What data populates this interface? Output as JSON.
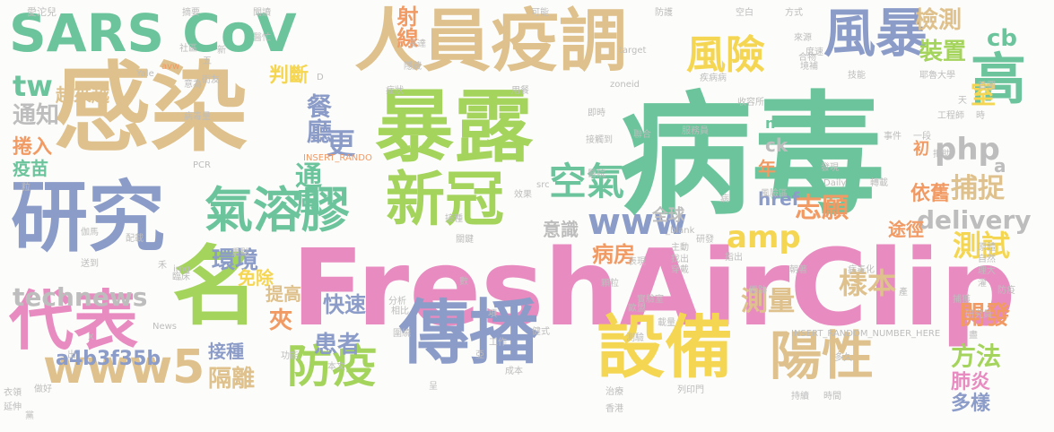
{
  "palette": {
    "green": "#6cc49c",
    "tan": "#dec18c",
    "blue": "#8c9cc8",
    "lime": "#a4d45c",
    "yellow": "#f5d653",
    "orange": "#f29a63",
    "pink": "#e88bc0",
    "gray": "#bdbdbd"
  },
  "words": [
    {
      "text": "病毒",
      "color": "green"
    },
    {
      "text": "FreshAirClip",
      "color": "pink"
    },
    {
      "text": "感染",
      "color": "tan"
    },
    {
      "text": "暴露",
      "color": "lime"
    },
    {
      "text": "人員疫調",
      "color": "tan"
    },
    {
      "text": "研究",
      "color": "blue"
    },
    {
      "text": "傳播",
      "color": "blue"
    },
    {
      "text": "設備",
      "color": "yellow"
    },
    {
      "text": "名",
      "color": "lime"
    },
    {
      "text": "代表",
      "color": "pink"
    },
    {
      "text": "新冠",
      "color": "lime"
    },
    {
      "text": "SARS CoV",
      "color": "green"
    },
    {
      "text": "風暴",
      "color": "blue"
    },
    {
      "text": "氣溶膠",
      "color": "green"
    },
    {
      "text": "陽性",
      "color": "tan"
    },
    {
      "text": "www5",
      "color": "tan"
    },
    {
      "text": "防疫",
      "color": "lime"
    },
    {
      "text": "風險",
      "color": "yellow"
    },
    {
      "text": "高",
      "color": "green"
    },
    {
      "text": "technews",
      "color": "gray"
    },
    {
      "text": "delivery",
      "color": "gray"
    },
    {
      "text": "空氣",
      "color": "green"
    },
    {
      "text": "www",
      "color": "blue"
    },
    {
      "text": "amp",
      "color": "yellow"
    },
    {
      "text": "php",
      "color": "gray"
    },
    {
      "text": "cb",
      "color": "green"
    },
    {
      "text": "射線",
      "color": "orange"
    },
    {
      "text": "檢測",
      "color": "tan"
    },
    {
      "text": "裝置",
      "color": "lime"
    },
    {
      "text": "判斷",
      "color": "yellow"
    },
    {
      "text": "餐廳",
      "color": "blue"
    },
    {
      "text": "更",
      "color": "blue"
    },
    {
      "text": "tw",
      "color": "green"
    },
    {
      "text": "通知",
      "color": "gray"
    },
    {
      "text": "捲入",
      "color": "orange"
    },
    {
      "text": "疫苗",
      "color": "green"
    },
    {
      "text": "越來越",
      "color": "tan"
    },
    {
      "text": "通風",
      "color": "green"
    },
    {
      "text": "環境",
      "color": "blue"
    },
    {
      "text": "捕捉",
      "color": "tan"
    },
    {
      "text": "室",
      "color": "yellow"
    },
    {
      "text": "志願",
      "color": "orange"
    },
    {
      "text": "測試",
      "color": "yellow"
    },
    {
      "text": "樣本",
      "color": "tan"
    },
    {
      "text": "測量",
      "color": "tan"
    },
    {
      "text": "開發",
      "color": "orange"
    },
    {
      "text": "方法",
      "color": "lime"
    },
    {
      "text": "肺炎",
      "color": "pink"
    },
    {
      "text": "多樣",
      "color": "blue"
    },
    {
      "text": "病房",
      "color": "orange"
    },
    {
      "text": "意識",
      "color": "gray"
    },
    {
      "text": "年",
      "color": "orange"
    },
    {
      "text": "快速",
      "color": "blue"
    },
    {
      "text": "患者",
      "color": "blue"
    },
    {
      "text": "提高",
      "color": "tan"
    },
    {
      "text": "夾",
      "color": "orange"
    },
    {
      "text": "免除",
      "color": "yellow"
    },
    {
      "text": "接種",
      "color": "blue"
    },
    {
      "text": "隔離",
      "color": "tan"
    },
    {
      "text": "a4b3f35b",
      "color": "blue"
    },
    {
      "text": "全球",
      "color": "gray"
    },
    {
      "text": "href",
      "color": "blue"
    },
    {
      "text": "途徑",
      "color": "orange"
    },
    {
      "text": "依舊",
      "color": "orange"
    },
    {
      "text": "初",
      "color": "orange"
    },
    {
      "text": "ck",
      "color": "gray"
    },
    {
      "text": "a",
      "color": "gray"
    },
    {
      "text": "n",
      "color": "green"
    },
    {
      "text": "愛沱兒",
      "color": "gray"
    },
    {
      "text": "社區",
      "color": "gray"
    },
    {
      "text": "摘要",
      "color": "gray"
    },
    {
      "text": "聞讀",
      "color": "gray"
    },
    {
      "text": "可能",
      "color": "gray"
    },
    {
      "text": "防護",
      "color": "gray"
    },
    {
      "text": "空白",
      "color": "gray"
    },
    {
      "text": "方式",
      "color": "gray"
    },
    {
      "text": "度速",
      "color": "gray"
    },
    {
      "text": "Yale",
      "color": "gray"
    },
    {
      "text": "醫忙",
      "color": "gray"
    },
    {
      "text": "長達",
      "color": "gray"
    },
    {
      "text": "target",
      "color": "gray"
    },
    {
      "text": "來源",
      "color": "gray"
    },
    {
      "text": "境補",
      "color": "gray"
    },
    {
      "text": "耶魯大學",
      "color": "gray"
    },
    {
      "text": "avw",
      "color": "orange"
    },
    {
      "text": "意為",
      "color": "gray"
    },
    {
      "text": "隱藏",
      "color": "gray"
    },
    {
      "text": "疾病病",
      "color": "gray"
    },
    {
      "text": "zoneid",
      "color": "gray"
    },
    {
      "text": "技能",
      "color": "gray"
    },
    {
      "text": "首圖",
      "color": "gray"
    },
    {
      "text": "街友",
      "color": "gray"
    },
    {
      "text": "症狀",
      "color": "gray"
    },
    {
      "text": "用餐",
      "color": "gray"
    },
    {
      "text": "收容所",
      "color": "gray"
    },
    {
      "text": "病毒量",
      "color": "gray"
    },
    {
      "text": "即時",
      "color": "gray"
    },
    {
      "text": "服務員",
      "color": "gray"
    },
    {
      "text": "工程師",
      "color": "gray"
    },
    {
      "text": "PCR",
      "color": "gray"
    },
    {
      "text": "INSERT_RANDO",
      "color": "orange"
    },
    {
      "text": "接觸到",
      "color": "gray"
    },
    {
      "text": "一段",
      "color": "gray"
    },
    {
      "text": "發現",
      "color": "gray"
    },
    {
      "text": "醫院",
      "color": "gray"
    },
    {
      "text": "Daily",
      "color": "gray"
    },
    {
      "text": "轉載",
      "color": "gray"
    },
    {
      "text": "src",
      "color": "gray"
    },
    {
      "text": "效果",
      "color": "gray"
    },
    {
      "text": "風險區",
      "color": "gray"
    },
    {
      "text": "接種",
      "color": "gray"
    },
    {
      "text": "關鍵",
      "color": "gray"
    },
    {
      "text": "_blank",
      "color": "gray"
    },
    {
      "text": "研發",
      "color": "gray"
    },
    {
      "text": "伽馬",
      "color": "gray"
    },
    {
      "text": "配載",
      "color": "gray"
    },
    {
      "text": "送到",
      "color": "gray"
    },
    {
      "text": "臨床",
      "color": "gray"
    },
    {
      "text": "主動",
      "color": "gray"
    },
    {
      "text": "找出",
      "color": "gray"
    },
    {
      "text": "指出",
      "color": "gray"
    },
    {
      "text": "表現",
      "color": "gray"
    },
    {
      "text": "穿戴",
      "color": "gray"
    },
    {
      "text": "朝著",
      "color": "gray"
    },
    {
      "text": "病毒化",
      "color": "gray"
    },
    {
      "text": "原體",
      "color": "gray"
    },
    {
      "text": "自然",
      "color": "gray"
    },
    {
      "text": "理大",
      "color": "gray"
    },
    {
      "text": "img",
      "color": "gray"
    },
    {
      "text": "分析",
      "color": "gray"
    },
    {
      "text": "相比",
      "color": "gray"
    },
    {
      "text": "實驗室",
      "color": "gray"
    },
    {
      "text": "載量",
      "color": "gray"
    },
    {
      "text": "捕獲",
      "color": "gray"
    },
    {
      "text": "研究員",
      "color": "gray"
    },
    {
      "text": "防疫",
      "color": "gray"
    },
    {
      "text": "News",
      "color": "gray"
    },
    {
      "text": "圍繞",
      "color": "gray"
    },
    {
      "text": "INSERT_RANDOM_NUMBER_HERE",
      "color": "gray"
    },
    {
      "text": "測驗",
      "color": "gray"
    },
    {
      "text": "工作",
      "color": "gray"
    },
    {
      "text": "本文",
      "color": "gray"
    },
    {
      "text": "成本",
      "color": "gray"
    },
    {
      "text": "列印門",
      "color": "gray"
    },
    {
      "text": "治療",
      "color": "gray"
    },
    {
      "text": "香港",
      "color": "gray"
    },
    {
      "text": "持續",
      "color": "gray"
    },
    {
      "text": "時間",
      "color": "gray"
    },
    {
      "text": "做好",
      "color": "gray"
    },
    {
      "text": "延伸",
      "color": "gray"
    },
    {
      "text": "衣領",
      "color": "gray"
    },
    {
      "text": "黨",
      "color": "gray"
    },
    {
      "text": "多久",
      "color": "gray"
    },
    {
      "text": "功能",
      "color": "gray"
    },
    {
      "text": "把助",
      "color": "gray"
    },
    {
      "text": "重點",
      "color": "gray"
    },
    {
      "text": "五",
      "color": "gray"
    },
    {
      "text": "天",
      "color": "gray"
    },
    {
      "text": "X",
      "color": "gray"
    },
    {
      "text": "D",
      "color": "gray"
    },
    {
      "text": "粒",
      "color": "gray"
    },
    {
      "text": "出",
      "color": "gray"
    },
    {
      "text": "呈",
      "color": "gray"
    },
    {
      "text": "禾",
      "color": "gray"
    },
    {
      "text": "病",
      "color": "gray"
    },
    {
      "text": "時",
      "color": "gray"
    },
    {
      "text": "亞",
      "color": "gray"
    },
    {
      "text": "事件",
      "color": "gray"
    },
    {
      "text": "健式",
      "color": "gray"
    },
    {
      "text": "顆粒",
      "color": "gray"
    },
    {
      "text": "原跡",
      "color": "gray"
    },
    {
      "text": "聯合",
      "color": "gray"
    },
    {
      "text": "盡",
      "color": "gray"
    },
    {
      "text": "新",
      "color": "gray"
    },
    {
      "text": "項",
      "color": "gray"
    },
    {
      "text": "合物",
      "color": "gray"
    },
    {
      "text": "歐盟",
      "color": "gray"
    },
    {
      "text": "數",
      "color": "gray"
    },
    {
      "text": "灌",
      "color": "gray"
    },
    {
      "text": "產",
      "color": "gray"
    }
  ]
}
